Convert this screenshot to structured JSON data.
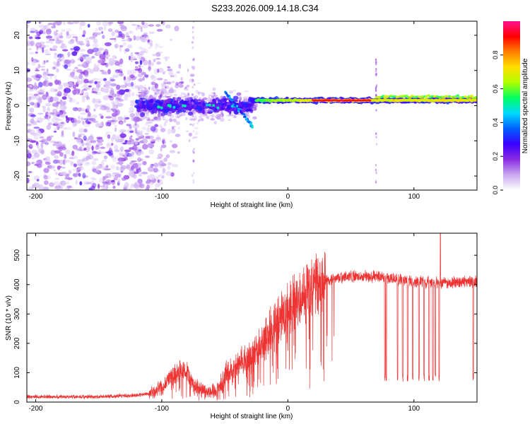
{
  "figure": {
    "title": "S233.2026.009.14.18.C34"
  },
  "chart_data": [
    {
      "type": "heatmap",
      "name": "spectrogram",
      "title": "S233.2026.009.14.18.C34",
      "xlabel": "Height of straight line (km)",
      "ylabel": "Frequency (Hz)",
      "xlim": [
        -207,
        150
      ],
      "ylim": [
        -24,
        24
      ],
      "xticks": [
        -200,
        -100,
        0,
        100
      ],
      "yticks": [
        -20,
        -10,
        0,
        10,
        20
      ],
      "colorbar": {
        "label": "Normalized spectral amplitude",
        "range": [
          0.0,
          1.0
        ],
        "ticks": [
          "0.0",
          "0.2",
          "0.4",
          "0.6",
          "0.8"
        ],
        "tick_values": [
          0.0,
          0.2,
          0.4,
          0.6,
          0.8
        ],
        "colors": [
          "#ffffff",
          "#c8a8f0",
          "#8a2be2",
          "#3a00ff",
          "#0060ff",
          "#00d8ff",
          "#00ff60",
          "#b0ff00",
          "#ffe000",
          "#ff8000",
          "#ff0000",
          "#ff1090"
        ]
      },
      "features": {
        "noise_region_km": [
          -207,
          -110
        ],
        "scatter_region_km": [
          -120,
          -28
        ],
        "carrier_start_km": -30,
        "carrier_end_km": 150,
        "carrier_frequency_hz": 1.5,
        "spikes_km": [
          70
        ]
      }
    },
    {
      "type": "line",
      "name": "snr",
      "xlabel": "Height of straight line (km)",
      "ylabel": "SNR (10 * v/v)",
      "xlim": [
        -207,
        150
      ],
      "ylim": [
        0,
        575
      ],
      "xticks": [
        -200,
        -100,
        0,
        100
      ],
      "yticks": [
        0,
        100,
        200,
        300,
        400,
        500
      ],
      "line_color": "#ee3333",
      "profile": [
        {
          "x": -207,
          "y": 18
        },
        {
          "x": -150,
          "y": 18
        },
        {
          "x": -125,
          "y": 22
        },
        {
          "x": -110,
          "y": 28
        },
        {
          "x": -100,
          "y": 50
        },
        {
          "x": -95,
          "y": 80
        },
        {
          "x": -85,
          "y": 105
        },
        {
          "x": -80,
          "y": 100
        },
        {
          "x": -75,
          "y": 60
        },
        {
          "x": -65,
          "y": 35
        },
        {
          "x": -55,
          "y": 40
        },
        {
          "x": -50,
          "y": 90
        },
        {
          "x": -40,
          "y": 120
        },
        {
          "x": -30,
          "y": 150
        },
        {
          "x": -20,
          "y": 200
        },
        {
          "x": -10,
          "y": 260
        },
        {
          "x": 0,
          "y": 310
        },
        {
          "x": 10,
          "y": 350
        },
        {
          "x": 20,
          "y": 385
        },
        {
          "x": 30,
          "y": 410
        },
        {
          "x": 40,
          "y": 425
        },
        {
          "x": 60,
          "y": 430
        },
        {
          "x": 80,
          "y": 420
        },
        {
          "x": 100,
          "y": 410
        },
        {
          "x": 120,
          "y": 405
        },
        {
          "x": 150,
          "y": 410
        }
      ],
      "dropouts_km": [
        77,
        78,
        87,
        91,
        95,
        99,
        104,
        108,
        112,
        115,
        117,
        120,
        147
      ],
      "peak": {
        "x": 121,
        "y": 575
      }
    }
  ]
}
